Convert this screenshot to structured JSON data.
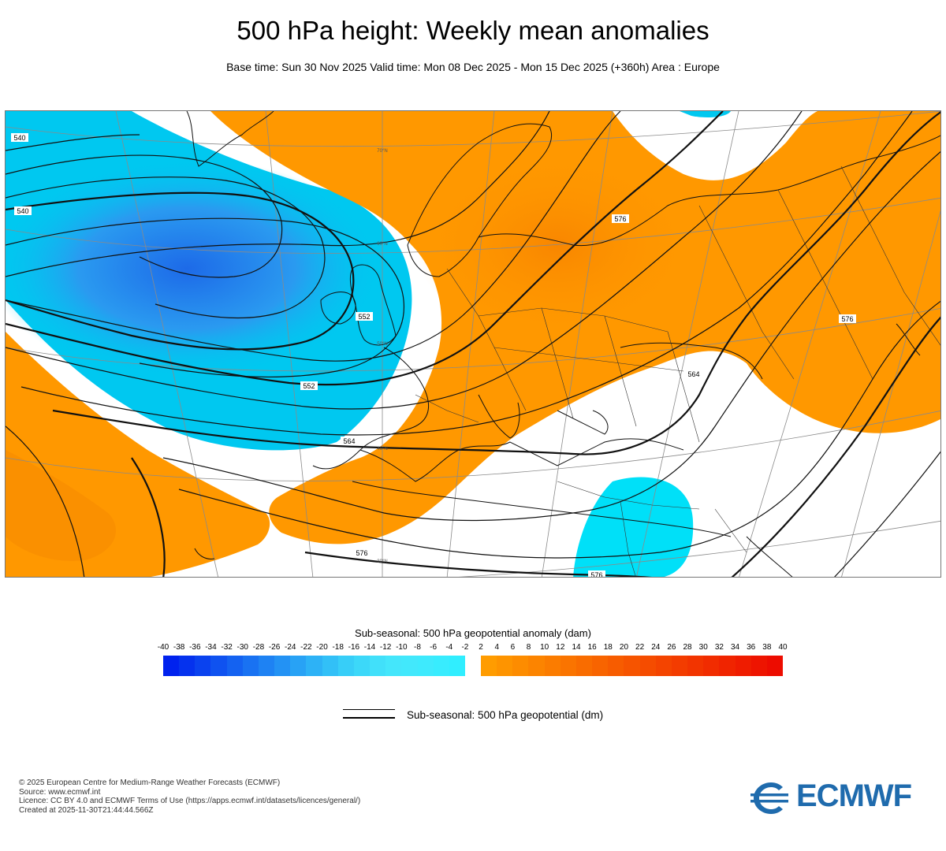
{
  "header": {
    "title": "500 hPa height: Weekly mean anomalies",
    "subtitle": "Base time: Sun 30 Nov 2025 Valid time: Mon 08 Dec 2025 - Mon 15 Dec 2025 (+360h) Area : Europe"
  },
  "map": {
    "contour_labels": [
      "540",
      "552",
      "564",
      "576",
      "552",
      "576",
      "564",
      "576",
      "576",
      "540"
    ],
    "latitude_labels": [
      "70°N",
      "60°N",
      "50°N",
      "40°N",
      "30°N"
    ],
    "colors": {
      "negative": "#00c8f0",
      "negative_strong": "#1670e8",
      "positive": "#ff9800",
      "positive_strong": "#f47a00",
      "contour": "#000000",
      "grid": "#808080",
      "coast": "#000000"
    }
  },
  "colorbar": {
    "title": "Sub-seasonal: 500 hPa geopotential anomaly (dam)",
    "ticks": [
      "-40",
      "-38",
      "-36",
      "-34",
      "-32",
      "-30",
      "-28",
      "-26",
      "-24",
      "-22",
      "-20",
      "-18",
      "-16",
      "-14",
      "-12",
      "-10",
      "-8",
      "-6",
      "-4",
      "-2",
      "2",
      "4",
      "6",
      "8",
      "10",
      "12",
      "14",
      "16",
      "18",
      "20",
      "22",
      "24",
      "26",
      "28",
      "30",
      "32",
      "34",
      "36",
      "38",
      "40"
    ],
    "negative_colors": [
      "#0022ee",
      "#0532ee",
      "#0a42ef",
      "#0f52f0",
      "#1462f1",
      "#1972f2",
      "#1e82f3",
      "#2392f4",
      "#28a2f5",
      "#2db2f6",
      "#32c0f7",
      "#37cef8",
      "#3cd8f9",
      "#41e0fa",
      "#44e6fb",
      "#42e8fc",
      "#3eeafd",
      "#38ecfe",
      "#30eeff"
    ],
    "positive_colors": [
      "#ff9c00",
      "#fe9400",
      "#fd8c00",
      "#fc8400",
      "#fb7c00",
      "#fa7400",
      "#f96c00",
      "#f86400",
      "#f75c00",
      "#f65400",
      "#f54c00",
      "#f44400",
      "#f33c00",
      "#f23400",
      "#f12c00",
      "#f02400",
      "#ef1c00",
      "#ee1400",
      "#ed0c00"
    ]
  },
  "legend": {
    "line_label": "Sub-seasonal: 500 hPa geopotential (dm)"
  },
  "footer": {
    "lines": [
      "© 2025 European Centre for Medium-Range Weather Forecasts (ECMWF)",
      "Source: www.ecmwf.int",
      "Licence: CC BY 4.0 and ECMWF Terms of Use (https://apps.ecmwf.int/datasets/licences/general/)",
      "Created at 2025-11-30T21:44:44.566Z"
    ]
  },
  "logo": {
    "text": "ECMWF"
  }
}
